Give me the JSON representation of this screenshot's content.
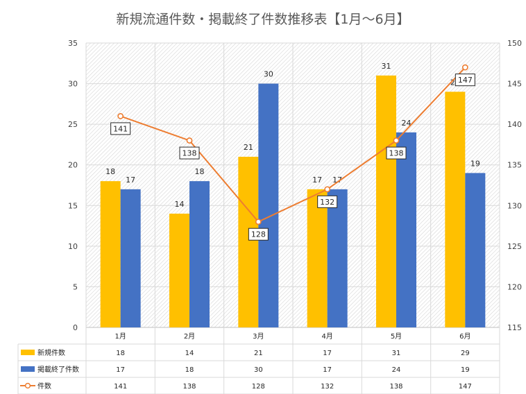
{
  "chart_data": {
    "type": "bar",
    "title": "新規流通件数・掲載終了件数推移表【1月～6月】",
    "categories": [
      "1月",
      "2月",
      "3月",
      "4月",
      "5月",
      "6月"
    ],
    "series": [
      {
        "name": "新規件数",
        "type": "bar",
        "axis": "left",
        "color": "#FFC000",
        "values": [
          18,
          14,
          21,
          17,
          31,
          29
        ]
      },
      {
        "name": "掲載終了件数",
        "type": "bar",
        "axis": "left",
        "color": "#4472C4",
        "values": [
          17,
          18,
          30,
          17,
          24,
          19
        ]
      },
      {
        "name": "件数",
        "type": "line",
        "axis": "right",
        "color": "#ED7D31",
        "values": [
          141,
          138,
          128,
          132,
          138,
          147
        ]
      }
    ],
    "left_axis": {
      "min": 0,
      "max": 35,
      "step": 5
    },
    "right_axis": {
      "min": 115,
      "max": 150,
      "step": 5
    },
    "grid": true,
    "legend": "data-table below chart"
  }
}
